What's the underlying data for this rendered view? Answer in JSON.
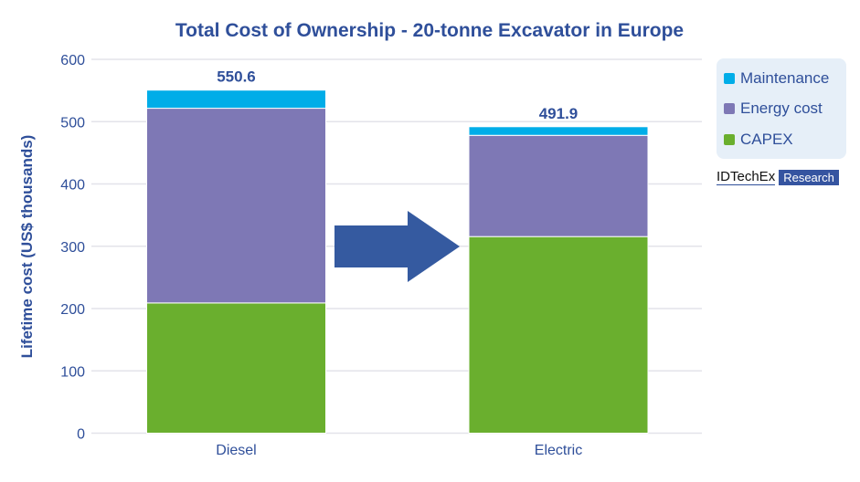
{
  "chart_data": {
    "type": "bar",
    "stacked": true,
    "title": "Total Cost of Ownership - 20-tonne Excavator in Europe",
    "xlabel": "",
    "ylabel": "Lifetime cost (US$ thousands)",
    "ylim": [
      0,
      600
    ],
    "yticks": [
      0,
      100,
      200,
      300,
      400,
      500,
      600
    ],
    "grid": true,
    "legend_placement": "right",
    "categories": [
      "Diesel",
      "Electric"
    ],
    "series": [
      {
        "name": "CAPEX",
        "color": "#6aaf2e",
        "values": [
          209,
          315.5
        ]
      },
      {
        "name": "Energy cost",
        "color": "#7e78b5",
        "values": [
          312.5,
          162.5
        ]
      },
      {
        "name": "Maintenance",
        "color": "#00ade8",
        "values": [
          29.1,
          13.9
        ]
      }
    ],
    "totals": [
      "550.6",
      "491.9"
    ],
    "annotations": [
      {
        "type": "arrow",
        "direction": "right",
        "from": "Diesel",
        "to": "Electric",
        "color": "#355aa0"
      }
    ]
  },
  "legend": [
    "Maintenance",
    "Energy cost",
    "CAPEX"
  ],
  "logo": {
    "brand": "IDTechEx",
    "tag": "Research"
  }
}
